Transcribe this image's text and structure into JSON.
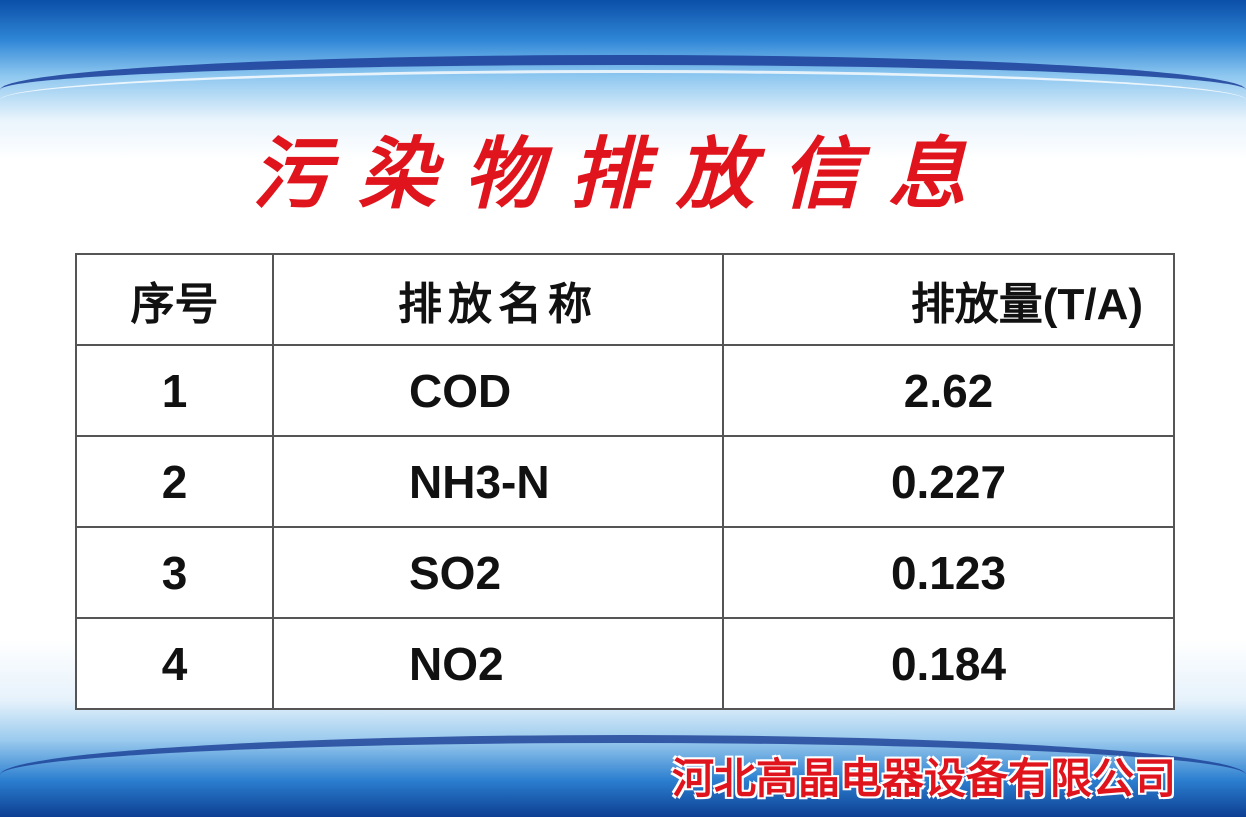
{
  "title": "污染物排放信息",
  "table": {
    "headers": [
      "序号",
      "排放名称",
      "排放量(T/A)"
    ],
    "rows": [
      [
        "1",
        "COD",
        "2.62"
      ],
      [
        "2",
        "NH3-N",
        "0.227"
      ],
      [
        "3",
        "SO2",
        "0.123"
      ],
      [
        "4",
        "NO2",
        "0.184"
      ]
    ]
  },
  "company": "河北高晶电器设备有限公司",
  "colors": {
    "title": "#e0141c",
    "background_accent": "#0b4fa8"
  }
}
